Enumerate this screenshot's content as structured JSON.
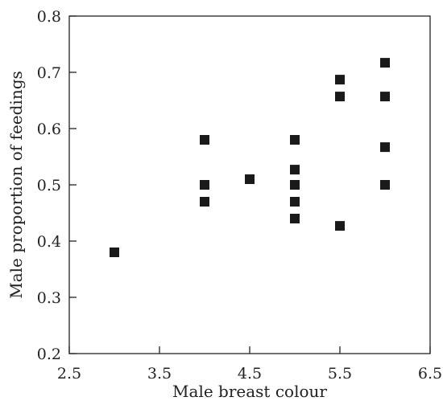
{
  "chart_data": {
    "type": "scatter",
    "xlabel": "Male breast colour",
    "ylabel": "Male proportion of feedings",
    "xlim": [
      2.5,
      6.5
    ],
    "ylim": [
      0.2,
      0.8
    ],
    "xticks": [
      "2.5",
      "3.5",
      "4.5",
      "5.5",
      "6.5"
    ],
    "yticks": [
      "0.2",
      "0.3",
      "0.4",
      "0.5",
      "0.6",
      "0.7",
      "0.8"
    ],
    "grid": false,
    "marker": "square",
    "marker_color": "#1a1a1a",
    "points": [
      {
        "x": 3.0,
        "y": 0.38
      },
      {
        "x": 4.0,
        "y": 0.58
      },
      {
        "x": 4.0,
        "y": 0.5
      },
      {
        "x": 4.0,
        "y": 0.47
      },
      {
        "x": 4.5,
        "y": 0.51
      },
      {
        "x": 5.0,
        "y": 0.58
      },
      {
        "x": 5.0,
        "y": 0.527
      },
      {
        "x": 5.0,
        "y": 0.5
      },
      {
        "x": 5.0,
        "y": 0.47
      },
      {
        "x": 5.0,
        "y": 0.44
      },
      {
        "x": 5.5,
        "y": 0.687
      },
      {
        "x": 5.5,
        "y": 0.657
      },
      {
        "x": 5.5,
        "y": 0.427
      },
      {
        "x": 6.0,
        "y": 0.717
      },
      {
        "x": 6.0,
        "y": 0.657
      },
      {
        "x": 6.0,
        "y": 0.567
      },
      {
        "x": 6.0,
        "y": 0.5
      }
    ]
  }
}
